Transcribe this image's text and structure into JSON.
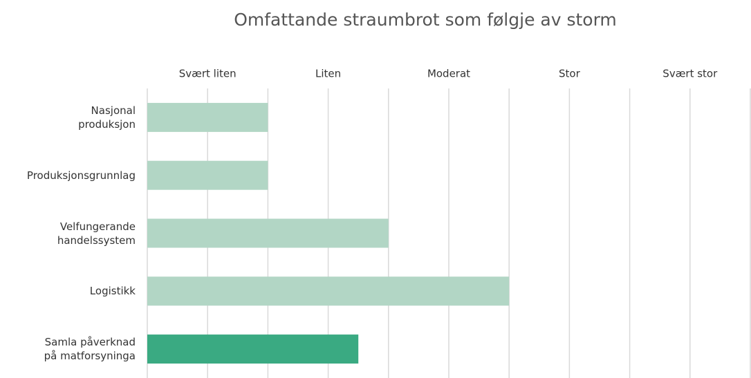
{
  "chart_data": {
    "type": "barh",
    "title": "Omfattande straumbrot som følgje av storm",
    "categories": [
      "Nasjonal\nproduksjon",
      "Produksjonsgrunnlag",
      "Velfungerande\nhandelssystem",
      "Logistikk",
      "Samla påverknad\npå matforsyninga"
    ],
    "values": [
      2,
      2,
      4,
      6,
      3.5
    ],
    "colors": [
      "#b2d6c5",
      "#b2d6c5",
      "#b2d6c5",
      "#b2d6c5",
      "#3aaa82"
    ],
    "xlim": [
      0,
      10
    ],
    "xticks": [
      0,
      1,
      2,
      3,
      4,
      5,
      6,
      7,
      8,
      9,
      10
    ],
    "scale_labels": [
      {
        "value": 1,
        "label": "Svært liten"
      },
      {
        "value": 3,
        "label": "Liten"
      },
      {
        "value": 5,
        "label": "Moderat"
      },
      {
        "value": 7,
        "label": "Stor"
      },
      {
        "value": 9,
        "label": "Svært stor"
      }
    ],
    "grid": true
  }
}
